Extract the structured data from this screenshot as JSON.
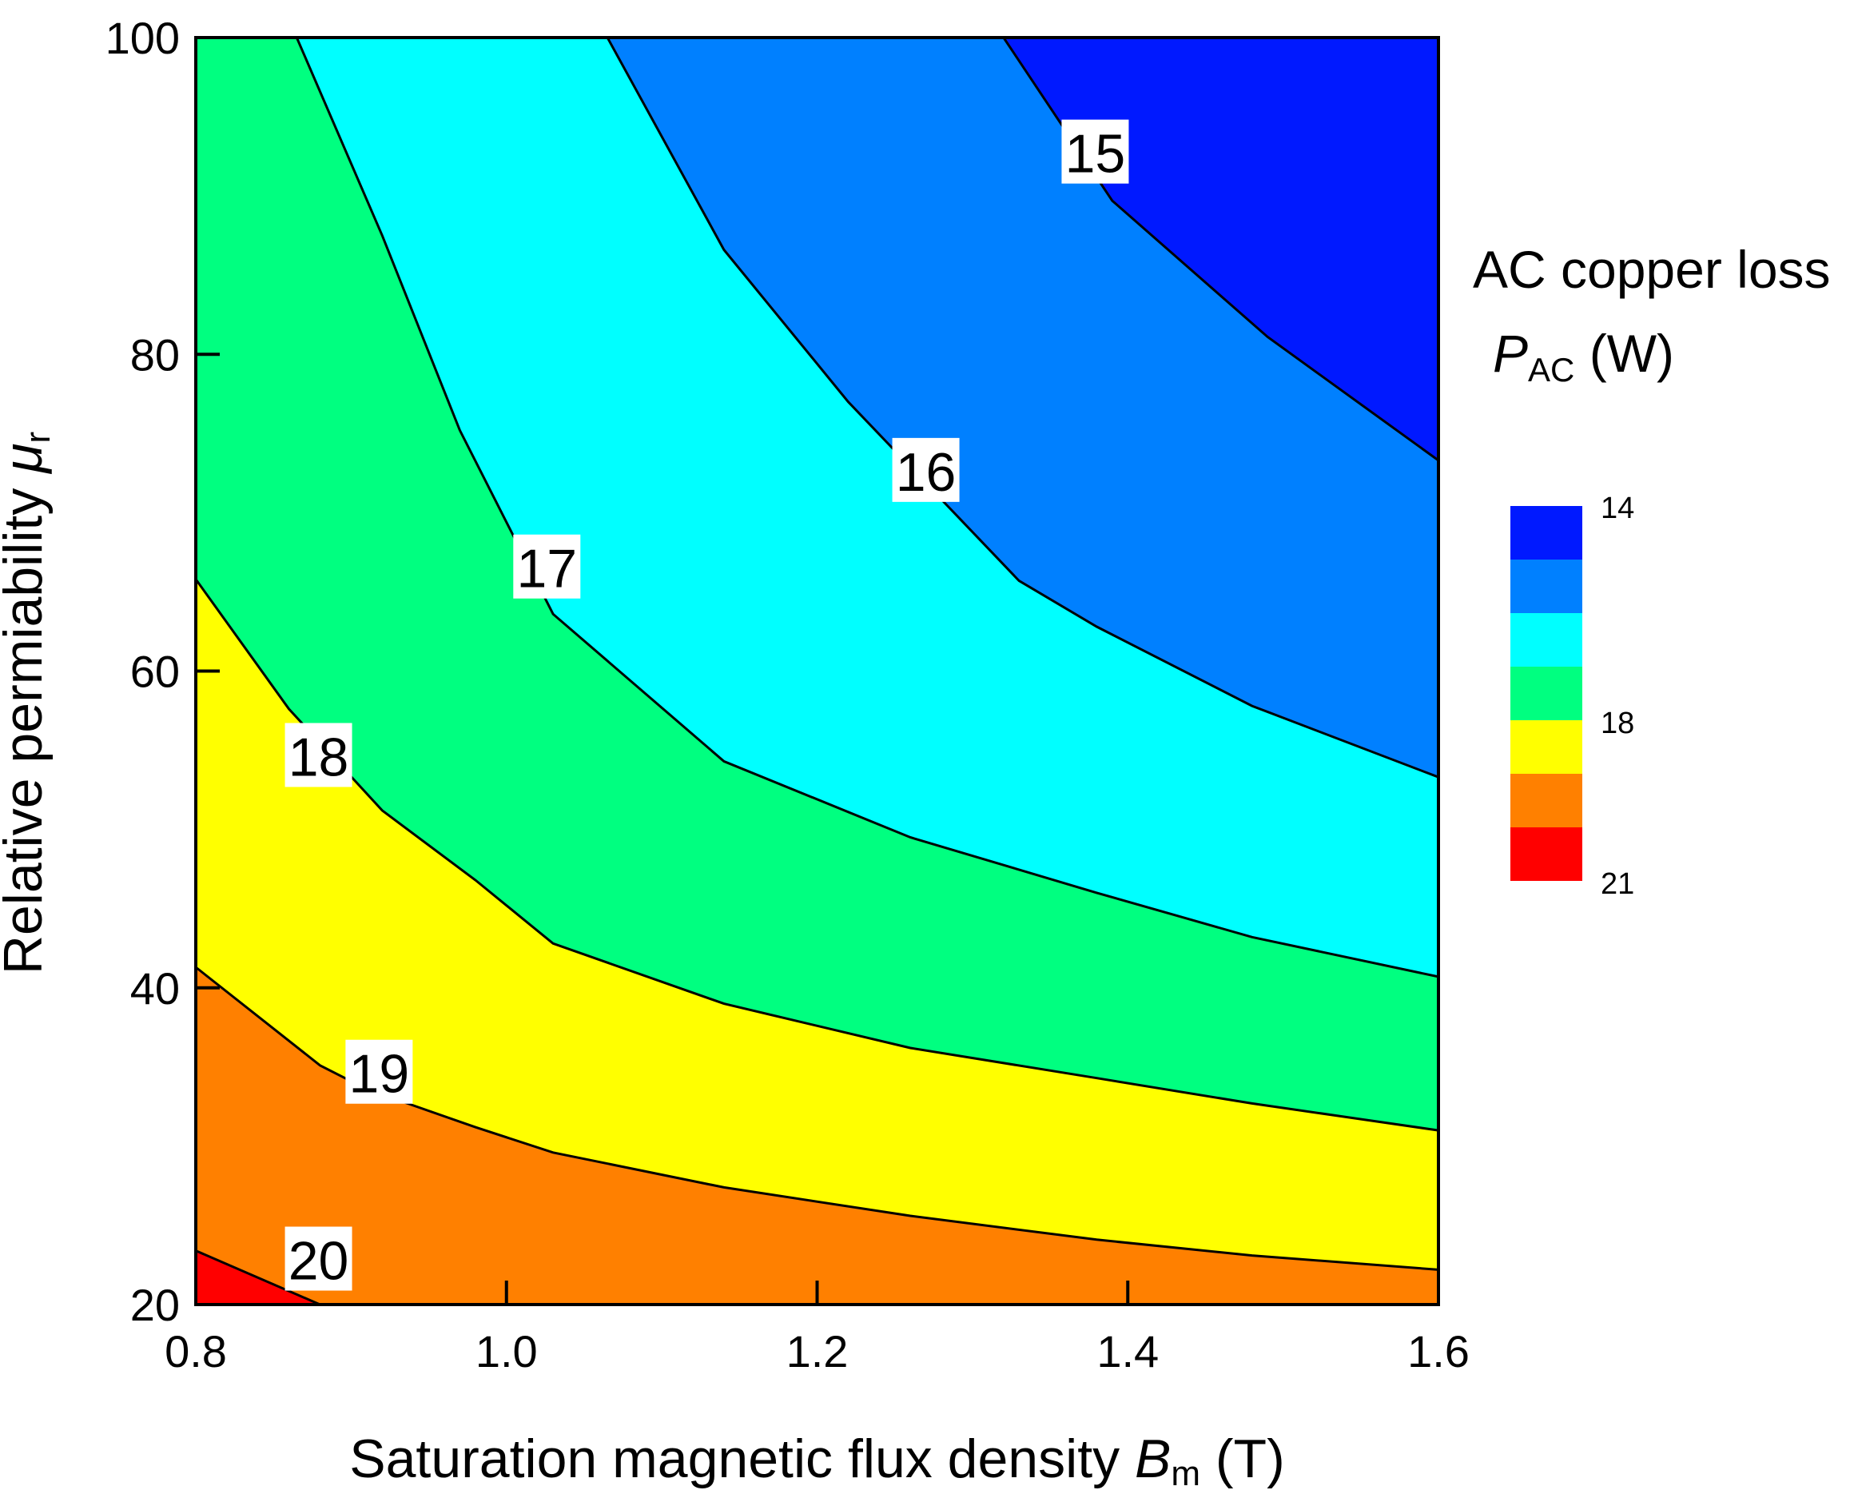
{
  "chart_data": {
    "type": "contour",
    "xlabel": {
      "main": "Saturation magnetic flux density ",
      "symbol": "B",
      "sub": "m",
      "unit": " (T)"
    },
    "ylabel": {
      "main": "Relative permiability ",
      "symbol": "μ",
      "sub": "r"
    },
    "xlim": [
      0.8,
      1.6
    ],
    "ylim": [
      20,
      100
    ],
    "xticks": [
      0.8,
      1.0,
      1.2,
      1.4,
      1.6
    ],
    "xtick_labels": [
      "0.8",
      "1.0",
      "1.2",
      "1.4",
      "1.6"
    ],
    "yticks": [
      20,
      40,
      60,
      80,
      100
    ],
    "ytick_labels": [
      "20",
      "40",
      "60",
      "80",
      "100"
    ],
    "colorbar": {
      "title_line1": "AC copper loss",
      "title_symbol": "P",
      "title_sub": "AC",
      "title_unit": " (W)",
      "tick_labels": [
        "14",
        "18",
        "21"
      ],
      "bands_top_to_bottom": [
        "#0019ff",
        "#0080ff",
        "#00ffff",
        "#00ff80",
        "#ffff00",
        "#ff8000",
        "#ff0000"
      ]
    },
    "region_colors": [
      "#ff0000",
      "#ff8000",
      "#ffff00",
      "#00ff80",
      "#00ffff",
      "#0080ff",
      "#0019ff"
    ],
    "contours": [
      {
        "level": "20",
        "points": [
          [
            0.8,
            23.4
          ],
          [
            0.88,
            20.0
          ]
        ],
        "label_at": [
          0.879,
          22.8
        ]
      },
      {
        "level": "19",
        "points": [
          [
            0.8,
            41.3
          ],
          [
            0.88,
            35.1
          ],
          [
            0.91,
            33.6
          ],
          [
            0.98,
            31.2
          ],
          [
            1.03,
            29.6
          ],
          [
            1.14,
            27.4
          ],
          [
            1.26,
            25.6
          ],
          [
            1.38,
            24.1
          ],
          [
            1.48,
            23.1
          ],
          [
            1.6,
            22.2
          ]
        ],
        "label_at": [
          0.918,
          34.6
        ]
      },
      {
        "level": "18",
        "points": [
          [
            0.8,
            65.8
          ],
          [
            0.86,
            57.6
          ],
          [
            0.92,
            51.2
          ],
          [
            0.98,
            46.8
          ],
          [
            1.03,
            42.8
          ],
          [
            1.14,
            39.0
          ],
          [
            1.26,
            36.2
          ],
          [
            1.38,
            34.3
          ],
          [
            1.48,
            32.7
          ],
          [
            1.6,
            31.0
          ]
        ],
        "label_at": [
          0.879,
          54.6
        ]
      },
      {
        "level": "17",
        "points": [
          [
            0.865,
            100.0
          ],
          [
            0.92,
            87.5
          ],
          [
            0.97,
            75.2
          ],
          [
            1.03,
            63.6
          ],
          [
            1.14,
            54.3
          ],
          [
            1.26,
            49.5
          ],
          [
            1.38,
            46.0
          ],
          [
            1.48,
            43.2
          ],
          [
            1.6,
            40.7
          ]
        ],
        "label_at": [
          1.026,
          66.5
        ]
      },
      {
        "level": "16",
        "points": [
          [
            1.065,
            100.0
          ],
          [
            1.14,
            86.6
          ],
          [
            1.22,
            77.0
          ],
          [
            1.33,
            65.7
          ],
          [
            1.38,
            62.8
          ],
          [
            1.48,
            57.8
          ],
          [
            1.6,
            53.3
          ]
        ],
        "label_at": [
          1.27,
          72.6
        ]
      },
      {
        "level": "15",
        "points": [
          [
            1.32,
            100.0
          ],
          [
            1.39,
            89.7
          ],
          [
            1.49,
            81.1
          ],
          [
            1.6,
            73.3
          ]
        ],
        "label_at": [
          1.379,
          92.7
        ]
      }
    ]
  }
}
